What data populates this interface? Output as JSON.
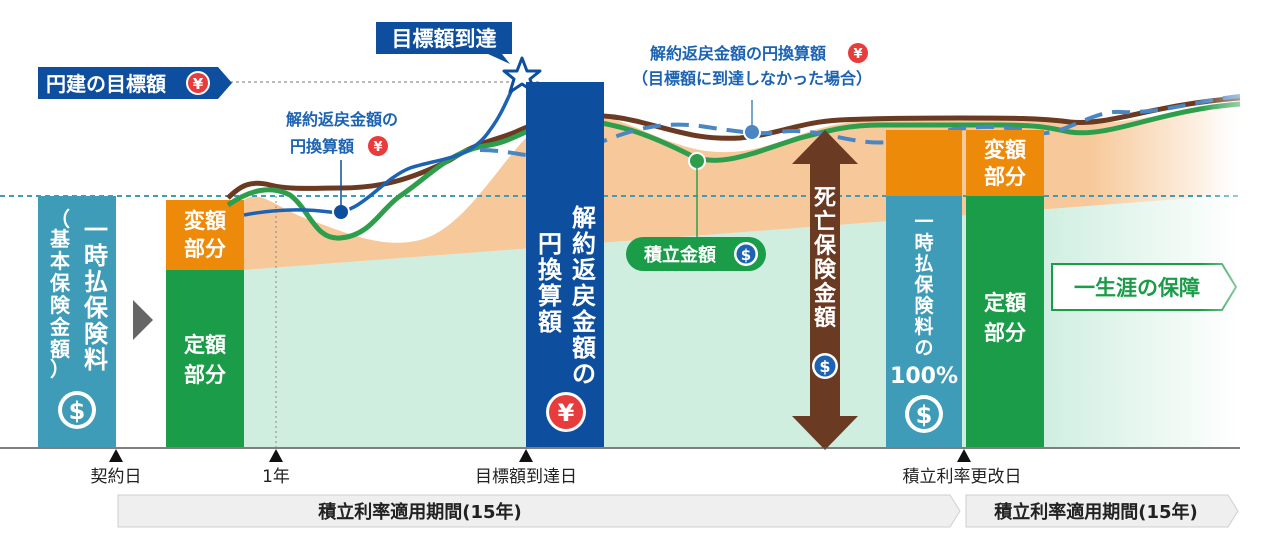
{
  "labels": {
    "yen_target": "円建の目標額",
    "target_reached": "目標額到達",
    "fx_conversion_top": "解約返戻金額の円換算額",
    "fx_conversion_top_note": "（目標額に到達しなかった場合）",
    "fx_conversion_left_1": "解約返戻金額の",
    "fx_conversion_left_2": "円換算額",
    "lump_premium_col": [
      "一",
      "時",
      "払",
      "保",
      "険",
      "料"
    ],
    "basic_insured_col": [
      "（",
      "基",
      "本",
      "保",
      "険",
      "金",
      "額",
      "）"
    ],
    "variable_part": [
      "変額",
      "部分"
    ],
    "fixed_part": [
      "定額",
      "部分"
    ],
    "fx_bar_col1": [
      "解",
      "約",
      "返",
      "戻",
      "金",
      "額",
      "の"
    ],
    "fx_bar_col2": [
      "円",
      "換",
      "算",
      "額"
    ],
    "accumulated_amount": "積立金額",
    "death_benefit": [
      "死",
      "亡",
      "保",
      "険",
      "金",
      "額"
    ],
    "lump_premium_100": [
      "一",
      "時",
      "払",
      "保",
      "険",
      "料",
      "の"
    ],
    "hundred_percent": "100%",
    "lifetime_coverage": "一生涯の保障"
  },
  "icons": {
    "dollar": "$",
    "yen": "¥"
  },
  "axis": {
    "contract_day": "契約日",
    "one_year": "1年",
    "target_day": "目標額到達日",
    "rate_revision_day": "積立利率更改日"
  },
  "periods": {
    "first": "積立利率適用期間(15年)",
    "second": "積立利率適用期間(15年)"
  },
  "colors": {
    "teal": "#3f9cb8",
    "orange": "#ee8a0a",
    "green": "#1a9c48",
    "navy": "#0d4f9e",
    "blue": "#1565b8",
    "brown": "#6b3a22",
    "red": "#e83c3c",
    "mint": "#cfeee0",
    "peach": "#f7c99a"
  }
}
